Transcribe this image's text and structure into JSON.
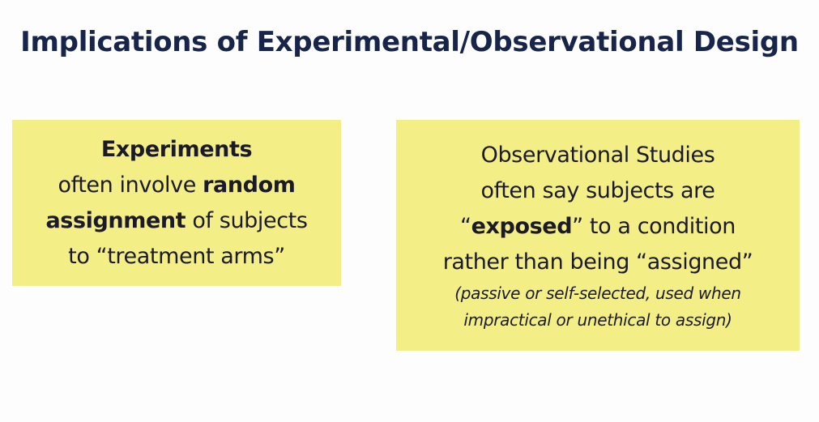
{
  "title": "Implications of Experimental/Observational Design",
  "experiments": {
    "heading": "Experiments",
    "line2_a": "often involve ",
    "line2_b": "random",
    "line3_a": "assignment",
    "line3_b": " of subjects",
    "line4": "to “treatment arms”"
  },
  "observational": {
    "line1": "Observational Studies",
    "line2": "often say subjects are",
    "line3_a": "“",
    "line3_b": "exposed",
    "line3_c": "” to a condition",
    "line4": "rather than being “assigned”",
    "note1": "(passive or self-selected, used when",
    "note2": "impractical or unethical to assign)"
  },
  "colors": {
    "box_fill": "#f4ee86",
    "title_color": "#17254a"
  }
}
